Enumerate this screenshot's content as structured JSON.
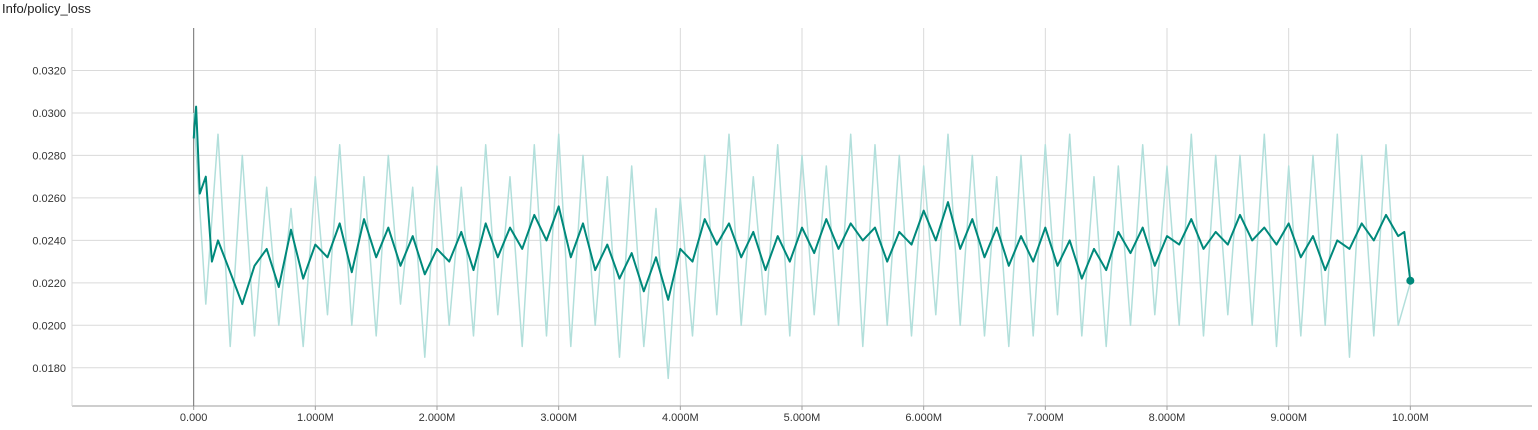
{
  "chart_data": {
    "type": "line",
    "title": "Info/policy_loss",
    "xlabel": "",
    "ylabel": "",
    "xlim": [
      -1.0,
      11.0
    ],
    "ylim": [
      0.0162,
      0.034
    ],
    "x_ticks": [
      0,
      1,
      2,
      3,
      4,
      5,
      6,
      7,
      8,
      9,
      10
    ],
    "x_tick_labels": [
      "0.000",
      "1.000M",
      "2.000M",
      "3.000M",
      "4.000M",
      "5.000M",
      "6.000M",
      "7.000M",
      "8.000M",
      "9.000M",
      "10.00M"
    ],
    "y_ticks": [
      0.018,
      0.02,
      0.022,
      0.024,
      0.026,
      0.028,
      0.03,
      0.032
    ],
    "y_tick_labels": [
      "0.0180",
      "0.0200",
      "0.0220",
      "0.0240",
      "0.0260",
      "0.0280",
      "0.0300",
      "0.0320"
    ],
    "grid": true,
    "colors": {
      "smoothed": "#00897b",
      "raw": "#b2dfdb",
      "grid": "#dadada",
      "axis": "#9e9e9e"
    },
    "series": [
      {
        "role": "raw",
        "x": [
          0,
          0.1,
          0.2,
          0.3,
          0.4,
          0.5,
          0.6,
          0.7,
          0.8,
          0.9,
          1.0,
          1.1,
          1.2,
          1.3,
          1.4,
          1.5,
          1.6,
          1.7,
          1.8,
          1.9,
          2.0,
          2.1,
          2.2,
          2.3,
          2.4,
          2.5,
          2.6,
          2.7,
          2.8,
          2.9,
          3.0,
          3.1,
          3.2,
          3.3,
          3.4,
          3.5,
          3.6,
          3.7,
          3.8,
          3.9,
          4.0,
          4.1,
          4.2,
          4.3,
          4.4,
          4.5,
          4.6,
          4.7,
          4.8,
          4.9,
          5.0,
          5.1,
          5.2,
          5.3,
          5.4,
          5.5,
          5.6,
          5.7,
          5.8,
          5.9,
          6.0,
          6.1,
          6.2,
          6.3,
          6.4,
          6.5,
          6.6,
          6.7,
          6.8,
          6.9,
          7.0,
          7.1,
          7.2,
          7.3,
          7.4,
          7.5,
          7.6,
          7.7,
          7.8,
          7.9,
          8.0,
          8.1,
          8.2,
          8.3,
          8.4,
          8.5,
          8.6,
          8.7,
          8.8,
          8.9,
          9.0,
          9.1,
          9.2,
          9.3,
          9.4,
          9.5,
          9.6,
          9.7,
          9.8,
          9.9,
          10.0
        ],
        "y": [
          0.03,
          0.021,
          0.029,
          0.019,
          0.028,
          0.0195,
          0.0265,
          0.02,
          0.0255,
          0.019,
          0.027,
          0.0205,
          0.0285,
          0.02,
          0.027,
          0.0195,
          0.028,
          0.021,
          0.0265,
          0.0185,
          0.0275,
          0.02,
          0.0265,
          0.0195,
          0.0285,
          0.0205,
          0.027,
          0.019,
          0.0285,
          0.0195,
          0.029,
          0.019,
          0.028,
          0.02,
          0.027,
          0.0185,
          0.0275,
          0.019,
          0.0255,
          0.0175,
          0.026,
          0.0195,
          0.028,
          0.0205,
          0.029,
          0.02,
          0.027,
          0.0205,
          0.0285,
          0.0195,
          0.028,
          0.0205,
          0.0275,
          0.02,
          0.029,
          0.019,
          0.0285,
          0.02,
          0.028,
          0.0195,
          0.0275,
          0.0205,
          0.029,
          0.02,
          0.028,
          0.0195,
          0.027,
          0.019,
          0.028,
          0.0195,
          0.0285,
          0.0205,
          0.029,
          0.0195,
          0.027,
          0.019,
          0.0275,
          0.02,
          0.0285,
          0.0205,
          0.0275,
          0.02,
          0.029,
          0.0195,
          0.028,
          0.0205,
          0.028,
          0.02,
          0.029,
          0.019,
          0.0275,
          0.0195,
          0.028,
          0.02,
          0.029,
          0.0185,
          0.028,
          0.0195,
          0.0285,
          0.02,
          0.022
        ]
      },
      {
        "role": "smoothed",
        "x": [
          0.0,
          0.02,
          0.05,
          0.1,
          0.15,
          0.2,
          0.3,
          0.4,
          0.5,
          0.6,
          0.7,
          0.8,
          0.9,
          1.0,
          1.1,
          1.2,
          1.3,
          1.4,
          1.5,
          1.6,
          1.7,
          1.8,
          1.9,
          2.0,
          2.1,
          2.2,
          2.3,
          2.4,
          2.5,
          2.6,
          2.7,
          2.8,
          2.9,
          3.0,
          3.1,
          3.2,
          3.3,
          3.4,
          3.5,
          3.6,
          3.7,
          3.8,
          3.9,
          4.0,
          4.1,
          4.2,
          4.3,
          4.4,
          4.5,
          4.6,
          4.7,
          4.8,
          4.9,
          5.0,
          5.1,
          5.2,
          5.3,
          5.4,
          5.5,
          5.6,
          5.7,
          5.8,
          5.9,
          6.0,
          6.1,
          6.2,
          6.3,
          6.4,
          6.5,
          6.6,
          6.7,
          6.8,
          6.9,
          7.0,
          7.1,
          7.2,
          7.3,
          7.4,
          7.5,
          7.6,
          7.7,
          7.8,
          7.9,
          8.0,
          8.1,
          8.2,
          8.3,
          8.4,
          8.5,
          8.6,
          8.7,
          8.8,
          8.9,
          9.0,
          9.1,
          9.2,
          9.3,
          9.4,
          9.5,
          9.6,
          9.7,
          9.8,
          9.9,
          9.95,
          10.0
        ],
        "y": [
          0.0288,
          0.0303,
          0.0262,
          0.027,
          0.023,
          0.024,
          0.0225,
          0.021,
          0.0228,
          0.0236,
          0.0218,
          0.0245,
          0.0222,
          0.0238,
          0.0232,
          0.0248,
          0.0225,
          0.025,
          0.0232,
          0.0246,
          0.0228,
          0.0242,
          0.0224,
          0.0236,
          0.023,
          0.0244,
          0.0226,
          0.0248,
          0.0232,
          0.0246,
          0.0236,
          0.0252,
          0.024,
          0.0256,
          0.0232,
          0.0248,
          0.0226,
          0.0238,
          0.0222,
          0.0234,
          0.0216,
          0.0232,
          0.0212,
          0.0236,
          0.023,
          0.025,
          0.0238,
          0.0248,
          0.0232,
          0.0244,
          0.0226,
          0.0242,
          0.023,
          0.0246,
          0.0234,
          0.025,
          0.0236,
          0.0248,
          0.024,
          0.0246,
          0.023,
          0.0244,
          0.0238,
          0.0254,
          0.024,
          0.0258,
          0.0236,
          0.025,
          0.0232,
          0.0246,
          0.0228,
          0.0242,
          0.023,
          0.0246,
          0.0228,
          0.024,
          0.0222,
          0.0236,
          0.0226,
          0.0244,
          0.0234,
          0.0246,
          0.0228,
          0.0242,
          0.0238,
          0.025,
          0.0236,
          0.0244,
          0.0238,
          0.0252,
          0.024,
          0.0246,
          0.0238,
          0.0248,
          0.0232,
          0.0242,
          0.0226,
          0.024,
          0.0236,
          0.0248,
          0.024,
          0.0252,
          0.0242,
          0.0244,
          0.0221
        ]
      }
    ]
  }
}
